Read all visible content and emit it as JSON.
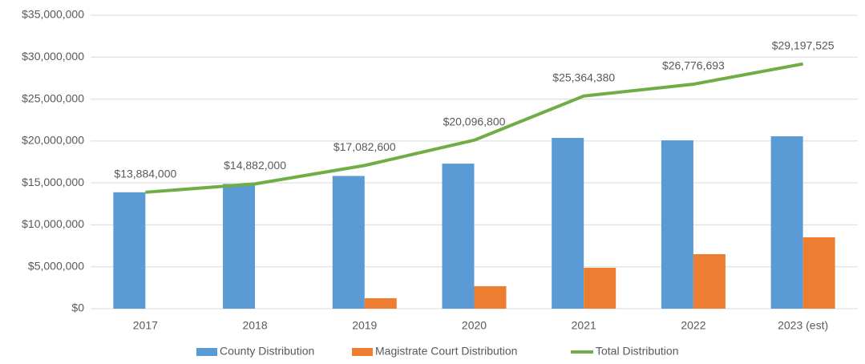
{
  "chart_data": {
    "type": "bar_line",
    "categories": [
      "2017",
      "2018",
      "2019",
      "2020",
      "2021",
      "2022",
      "2023 (est)"
    ],
    "series": [
      {
        "name": "County Distribution",
        "type": "bar",
        "color": "#5b9bd5",
        "values": [
          13884000,
          14882000,
          15830000,
          17300000,
          20370000,
          20080000,
          20560000
        ]
      },
      {
        "name": "Magistrate Court Distribution",
        "type": "bar",
        "color": "#ed7d31",
        "values": [
          null,
          null,
          1250000,
          2680000,
          4880000,
          6500000,
          8510000
        ]
      },
      {
        "name": "Total Distribution",
        "type": "line",
        "color": "#70ad47",
        "values": [
          13884000,
          14882000,
          17082600,
          20096800,
          25364380,
          26776693,
          29197525
        ],
        "value_labels": [
          "$13,884,000",
          "$14,882,000",
          "$17,082,600",
          "$20,096,800",
          "$25,364,380",
          "$26,776,693",
          "$29,197,525"
        ]
      }
    ],
    "ylim": [
      0,
      35000000
    ],
    "yticks": [
      {
        "value": 0,
        "label": "$0"
      },
      {
        "value": 5000000,
        "label": "$5,000,000"
      },
      {
        "value": 10000000,
        "label": "$10,000,000"
      },
      {
        "value": 15000000,
        "label": "$15,000,000"
      },
      {
        "value": 20000000,
        "label": "$20,000,000"
      },
      {
        "value": 25000000,
        "label": "$25,000,000"
      },
      {
        "value": 30000000,
        "label": "$30,000,000"
      },
      {
        "value": 35000000,
        "label": "$35,000,000"
      }
    ],
    "grid": true,
    "legend": "bottom"
  }
}
